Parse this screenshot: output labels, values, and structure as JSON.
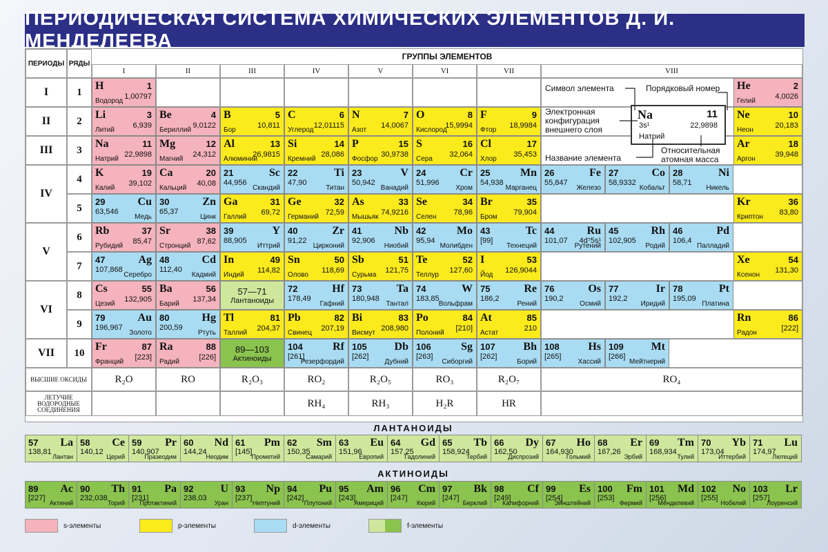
{
  "title": "ПЕРИОДИЧЕСКАЯ СИСТЕМА ХИМИЧЕСКИХ ЭЛЕМЕНТОВ Д. И. МЕНДЕЛЕЕВА",
  "headers": {
    "periods": "ПЕРИОДЫ",
    "rows": "РЯДЫ",
    "groups_title": "ГРУППЫ ЭЛЕМЕНТОВ"
  },
  "groups": [
    "I",
    "II",
    "III",
    "IV",
    "V",
    "VI",
    "VII",
    "VIII"
  ],
  "periods": [
    "I",
    "II",
    "III",
    "IV",
    "V",
    "VI",
    "VII"
  ],
  "rows": [
    "1",
    "2",
    "3",
    "4",
    "5",
    "6",
    "7",
    "8",
    "9",
    "10"
  ],
  "elements": [
    {
      "sym": "H",
      "num": "1",
      "mass": "1,00797",
      "name": "Водород",
      "cat": "s",
      "row": 1,
      "col": 1,
      "side": "l"
    },
    {
      "sym": "He",
      "num": "2",
      "mass": "4,0026",
      "name": "Гелий",
      "cat": "s",
      "row": 1,
      "col": 9,
      "side": "l"
    },
    {
      "sym": "Li",
      "num": "3",
      "mass": "6,939",
      "name": "Литий",
      "cat": "s",
      "row": 2,
      "col": 1,
      "side": "l"
    },
    {
      "sym": "Be",
      "num": "4",
      "mass": "9,0122",
      "name": "Бериллий",
      "cat": "s",
      "row": 2,
      "col": 2,
      "side": "l"
    },
    {
      "sym": "B",
      "num": "5",
      "mass": "10,811",
      "name": "Бор",
      "cat": "p",
      "row": 2,
      "col": 3,
      "side": "l"
    },
    {
      "sym": "C",
      "num": "6",
      "mass": "12,01115",
      "name": "Углерод",
      "cat": "p",
      "row": 2,
      "col": 4,
      "side": "l"
    },
    {
      "sym": "N",
      "num": "7",
      "mass": "14,0067",
      "name": "Азот",
      "cat": "p",
      "row": 2,
      "col": 5,
      "side": "l"
    },
    {
      "sym": "O",
      "num": "8",
      "mass": "15,9994",
      "name": "Кислород",
      "cat": "p",
      "row": 2,
      "col": 6,
      "side": "l"
    },
    {
      "sym": "F",
      "num": "9",
      "mass": "18,9984",
      "name": "Фтор",
      "cat": "p",
      "row": 2,
      "col": 7,
      "side": "l"
    },
    {
      "sym": "Ne",
      "num": "10",
      "mass": "20,183",
      "name": "Неон",
      "cat": "p",
      "row": 2,
      "col": 9,
      "side": "l"
    },
    {
      "sym": "Na",
      "num": "11",
      "mass": "22,9898",
      "name": "Натрий",
      "cat": "s",
      "row": 3,
      "col": 1,
      "side": "l"
    },
    {
      "sym": "Mg",
      "num": "12",
      "mass": "24,312",
      "name": "Магний",
      "cat": "s",
      "row": 3,
      "col": 2,
      "side": "l"
    },
    {
      "sym": "Al",
      "num": "13",
      "mass": "26,9815",
      "name": "Алюминий",
      "cat": "p",
      "row": 3,
      "col": 3,
      "side": "l"
    },
    {
      "sym": "Si",
      "num": "14",
      "mass": "28,086",
      "name": "Кремний",
      "cat": "p",
      "row": 3,
      "col": 4,
      "side": "l"
    },
    {
      "sym": "P",
      "num": "15",
      "mass": "30,9738",
      "name": "Фосфор",
      "cat": "p",
      "row": 3,
      "col": 5,
      "side": "l"
    },
    {
      "sym": "S",
      "num": "16",
      "mass": "32,064",
      "name": "Сера",
      "cat": "p",
      "row": 3,
      "col": 6,
      "side": "l"
    },
    {
      "sym": "Cl",
      "num": "17",
      "mass": "35,453",
      "name": "Хлор",
      "cat": "p",
      "row": 3,
      "col": 7,
      "side": "l"
    },
    {
      "sym": "Ar",
      "num": "18",
      "mass": "39,948",
      "name": "Аргон",
      "cat": "p",
      "row": 3,
      "col": 9,
      "side": "l"
    },
    {
      "sym": "K",
      "num": "19",
      "mass": "39,102",
      "name": "Калий",
      "cat": "s",
      "row": 4,
      "col": 1,
      "side": "l"
    },
    {
      "sym": "Ca",
      "num": "20",
      "mass": "40,08",
      "name": "Кальций",
      "cat": "s",
      "row": 4,
      "col": 2,
      "side": "l"
    },
    {
      "sym": "Sc",
      "num": "21",
      "mass": "44,956",
      "name": "Скандий",
      "cat": "d",
      "row": 4,
      "col": 3,
      "side": "r"
    },
    {
      "sym": "Ti",
      "num": "22",
      "mass": "47,90",
      "name": "Титан",
      "cat": "d",
      "row": 4,
      "col": 4,
      "side": "r"
    },
    {
      "sym": "V",
      "num": "23",
      "mass": "50,942",
      "name": "Ванадий",
      "cat": "d",
      "row": 4,
      "col": 5,
      "side": "r"
    },
    {
      "sym": "Cr",
      "num": "24",
      "mass": "51,996",
      "name": "Хром",
      "cat": "d",
      "row": 4,
      "col": 6,
      "side": "r"
    },
    {
      "sym": "Mn",
      "num": "25",
      "mass": "54,938",
      "name": "Марганец",
      "cat": "d",
      "row": 4,
      "col": 7,
      "side": "r"
    },
    {
      "sym": "Fe",
      "num": "26",
      "mass": "55,847",
      "name": "Железо",
      "cat": "d",
      "row": 4,
      "col": "8a",
      "side": "r"
    },
    {
      "sym": "Co",
      "num": "27",
      "mass": "58,9332",
      "name": "Кобальт",
      "cat": "d",
      "row": 4,
      "col": "8b",
      "side": "r"
    },
    {
      "sym": "Ni",
      "num": "28",
      "mass": "58,71",
      "name": "Никель",
      "cat": "d",
      "row": 4,
      "col": "8c",
      "side": "r"
    },
    {
      "sym": "Cu",
      "num": "29",
      "mass": "63,546",
      "name": "Медь",
      "cat": "d",
      "row": 5,
      "col": 1,
      "side": "r"
    },
    {
      "sym": "Zn",
      "num": "30",
      "mass": "65,37",
      "name": "Цинк",
      "cat": "d",
      "row": 5,
      "col": 2,
      "side": "r"
    },
    {
      "sym": "Ga",
      "num": "31",
      "mass": "69,72",
      "name": "Галлий",
      "cat": "p",
      "row": 5,
      "col": 3,
      "side": "l"
    },
    {
      "sym": "Ge",
      "num": "32",
      "mass": "72,59",
      "name": "Германий",
      "cat": "p",
      "row": 5,
      "col": 4,
      "side": "l"
    },
    {
      "sym": "As",
      "num": "33",
      "mass": "74,9216",
      "name": "Мышьяк",
      "cat": "p",
      "row": 5,
      "col": 5,
      "side": "l"
    },
    {
      "sym": "Se",
      "num": "34",
      "mass": "78,96",
      "name": "Селен",
      "cat": "p",
      "row": 5,
      "col": 6,
      "side": "l"
    },
    {
      "sym": "Br",
      "num": "35",
      "mass": "79,904",
      "name": "Бром",
      "cat": "p",
      "row": 5,
      "col": 7,
      "side": "l"
    },
    {
      "sym": "Kr",
      "num": "36",
      "mass": "83,80",
      "name": "Криптон",
      "cat": "p",
      "row": 5,
      "col": 9,
      "side": "l"
    },
    {
      "sym": "Rb",
      "num": "37",
      "mass": "85,47",
      "name": "Рубидий",
      "cat": "s",
      "row": 6,
      "col": 1,
      "side": "l"
    },
    {
      "sym": "Sr",
      "num": "38",
      "mass": "87,62",
      "name": "Стронций",
      "cat": "s",
      "row": 6,
      "col": 2,
      "side": "l"
    },
    {
      "sym": "Y",
      "num": "39",
      "mass": "88,905",
      "name": "Иттрий",
      "cat": "d",
      "row": 6,
      "col": 3,
      "side": "r"
    },
    {
      "sym": "Zr",
      "num": "40",
      "mass": "91,22",
      "name": "Цирконий",
      "cat": "d",
      "row": 6,
      "col": 4,
      "side": "r"
    },
    {
      "sym": "Nb",
      "num": "41",
      "mass": "92,906",
      "name": "Ниобий",
      "cat": "d",
      "row": 6,
      "col": 5,
      "side": "r"
    },
    {
      "sym": "Mo",
      "num": "42",
      "mass": "95,94",
      "name": "Молибден",
      "cat": "d",
      "row": 6,
      "col": 6,
      "side": "r"
    },
    {
      "sym": "Tc",
      "num": "43",
      "mass": "[99]",
      "name": "Технеций",
      "cat": "d",
      "row": 6,
      "col": 7,
      "side": "r"
    },
    {
      "sym": "Ru",
      "num": "44",
      "mass": "101,07",
      "name": "Рутений",
      "cat": "d",
      "row": 6,
      "col": "8a",
      "side": "r",
      "extra": "4d⁷5s¹"
    },
    {
      "sym": "Rh",
      "num": "45",
      "mass": "102,905",
      "name": "Родий",
      "cat": "d",
      "row": 6,
      "col": "8b",
      "side": "r"
    },
    {
      "sym": "Pd",
      "num": "46",
      "mass": "106,4",
      "name": "Палладий",
      "cat": "d",
      "row": 6,
      "col": "8c",
      "side": "r"
    },
    {
      "sym": "Ag",
      "num": "47",
      "mass": "107,868",
      "name": "Серебро",
      "cat": "d",
      "row": 7,
      "col": 1,
      "side": "r"
    },
    {
      "sym": "Cd",
      "num": "48",
      "mass": "112,40",
      "name": "Кадмий",
      "cat": "d",
      "row": 7,
      "col": 2,
      "side": "r"
    },
    {
      "sym": "In",
      "num": "49",
      "mass": "114,82",
      "name": "Индий",
      "cat": "p",
      "row": 7,
      "col": 3,
      "side": "l"
    },
    {
      "sym": "Sn",
      "num": "50",
      "mass": "118,69",
      "name": "Олово",
      "cat": "p",
      "row": 7,
      "col": 4,
      "side": "l"
    },
    {
      "sym": "Sb",
      "num": "51",
      "mass": "121,75",
      "name": "Сурьма",
      "cat": "p",
      "row": 7,
      "col": 5,
      "side": "l"
    },
    {
      "sym": "Te",
      "num": "52",
      "mass": "127,60",
      "name": "Теллур",
      "cat": "p",
      "row": 7,
      "col": 6,
      "side": "l"
    },
    {
      "sym": "I",
      "num": "53",
      "mass": "126,9044",
      "name": "Йод",
      "cat": "p",
      "row": 7,
      "col": 7,
      "side": "l"
    },
    {
      "sym": "Xe",
      "num": "54",
      "mass": "131,30",
      "name": "Ксенон",
      "cat": "p",
      "row": 7,
      "col": 9,
      "side": "l"
    },
    {
      "sym": "Cs",
      "num": "55",
      "mass": "132,905",
      "name": "Цезий",
      "cat": "s",
      "row": 8,
      "col": 1,
      "side": "l"
    },
    {
      "sym": "Ba",
      "num": "56",
      "mass": "137,34",
      "name": "Барий",
      "cat": "s",
      "row": 8,
      "col": 2,
      "side": "l"
    },
    {
      "sym": "Hf",
      "num": "72",
      "mass": "178,49",
      "name": "Гафний",
      "cat": "d",
      "row": 8,
      "col": 4,
      "side": "r"
    },
    {
      "sym": "Ta",
      "num": "73",
      "mass": "180,948",
      "name": "Тантал",
      "cat": "d",
      "row": 8,
      "col": 5,
      "side": "r"
    },
    {
      "sym": "W",
      "num": "74",
      "mass": "183,85",
      "name": "Вольфрам",
      "cat": "d",
      "row": 8,
      "col": 6,
      "side": "r"
    },
    {
      "sym": "Re",
      "num": "75",
      "mass": "186,2",
      "name": "Рений",
      "cat": "d",
      "row": 8,
      "col": 7,
      "side": "r"
    },
    {
      "sym": "Os",
      "num": "76",
      "mass": "190,2",
      "name": "Осмий",
      "cat": "d",
      "row": 8,
      "col": "8a",
      "side": "r"
    },
    {
      "sym": "Ir",
      "num": "77",
      "mass": "192,2",
      "name": "Иридий",
      "cat": "d",
      "row": 8,
      "col": "8b",
      "side": "r"
    },
    {
      "sym": "Pt",
      "num": "78",
      "mass": "195,09",
      "name": "Платина",
      "cat": "d",
      "row": 8,
      "col": "8c",
      "side": "r"
    },
    {
      "sym": "Au",
      "num": "79",
      "mass": "196,967",
      "name": "Золото",
      "cat": "d",
      "row": 9,
      "col": 1,
      "side": "r"
    },
    {
      "sym": "Hg",
      "num": "80",
      "mass": "200,59",
      "name": "Ртуть",
      "cat": "d",
      "row": 9,
      "col": 2,
      "side": "r"
    },
    {
      "sym": "Tl",
      "num": "81",
      "mass": "204,37",
      "name": "Таллий",
      "cat": "p",
      "row": 9,
      "col": 3,
      "side": "l"
    },
    {
      "sym": "Pb",
      "num": "82",
      "mass": "207,19",
      "name": "Свинец",
      "cat": "p",
      "row": 9,
      "col": 4,
      "side": "l"
    },
    {
      "sym": "Bi",
      "num": "83",
      "mass": "208,980",
      "name": "Висмут",
      "cat": "p",
      "row": 9,
      "col": 5,
      "side": "l"
    },
    {
      "sym": "Po",
      "num": "84",
      "mass": "[210]",
      "name": "Полоний",
      "cat": "p",
      "row": 9,
      "col": 6,
      "side": "l"
    },
    {
      "sym": "At",
      "num": "85",
      "mass": "210",
      "name": "Астат",
      "cat": "p",
      "row": 9,
      "col": 7,
      "side": "l"
    },
    {
      "sym": "Rn",
      "num": "86",
      "mass": "[222]",
      "name": "Радон",
      "cat": "p",
      "row": 9,
      "col": 9,
      "side": "l"
    },
    {
      "sym": "Fr",
      "num": "87",
      "mass": "[223]",
      "name": "Франций",
      "cat": "s",
      "row": 10,
      "col": 1,
      "side": "l"
    },
    {
      "sym": "Ra",
      "num": "88",
      "mass": "[226]",
      "name": "Радий",
      "cat": "s",
      "row": 10,
      "col": 2,
      "side": "l"
    },
    {
      "sym": "Rf",
      "num": "104",
      "mass": "[261]",
      "name": "Резерфордий",
      "cat": "d",
      "row": 10,
      "col": 4,
      "side": "r"
    },
    {
      "sym": "Db",
      "num": "105",
      "mass": "[262]",
      "name": "Дубний",
      "cat": "d",
      "row": 10,
      "col": 5,
      "side": "r"
    },
    {
      "sym": "Sg",
      "num": "106",
      "mass": "[263]",
      "name": "Сиборгий",
      "cat": "d",
      "row": 10,
      "col": 6,
      "side": "r"
    },
    {
      "sym": "Bh",
      "num": "107",
      "mass": "[262]",
      "name": "Борий",
      "cat": "d",
      "row": 10,
      "col": 7,
      "side": "r"
    },
    {
      "sym": "Hs",
      "num": "108",
      "mass": "[265]",
      "name": "Хассий",
      "cat": "d",
      "row": 10,
      "col": "8a",
      "side": "r"
    },
    {
      "sym": "Mt",
      "num": "109",
      "mass": "[266]",
      "name": "Мейтнерий",
      "cat": "d",
      "row": 10,
      "col": "8b",
      "side": "r"
    }
  ],
  "placeholders": {
    "lanthanoids": {
      "range": "57—71",
      "label": "Лантаноиды"
    },
    "actinoids": {
      "range": "89—103",
      "label": "Актиноиды"
    }
  },
  "key": {
    "symbol": "Символ элемента",
    "atomic_number": "Порядковый номер",
    "configuration": "Электронная конфигурация внешнего слоя",
    "element_name": "Название элемента",
    "relative_mass": "Относительная атомная масса",
    "sample_sym": "Na",
    "sample_num": "11",
    "sample_config": "3s¹",
    "sample_mass": "22,9898",
    "sample_name": "Натрий"
  },
  "oxides_label": "ВЫСШИЕ ОКСИДЫ",
  "oxides": [
    "R₂O",
    "RO",
    "R₂O₃",
    "RO₂",
    "R₂O₅",
    "RO₃",
    "R₂O₇",
    "RO₄"
  ],
  "hydrides_label": "ЛЕТУЧИЕ ВОДОРОДНЫЕ СОЕДИНЕНИЯ",
  "hydrides": [
    "",
    "",
    "",
    "RH₄",
    "RH₃",
    "H₂R",
    "HR",
    ""
  ],
  "lanthanoids_title": "ЛАНТАНОИДЫ",
  "lanthanoids": [
    {
      "sym": "La",
      "num": "57",
      "mass": "138,81",
      "name": "Лантан"
    },
    {
      "sym": "Ce",
      "num": "58",
      "mass": "140,12",
      "name": "Церий"
    },
    {
      "sym": "Pr",
      "num": "59",
      "mass": "140,907",
      "name": "Празеодим"
    },
    {
      "sym": "Nd",
      "num": "60",
      "mass": "144,24",
      "name": "Неодим"
    },
    {
      "sym": "Pm",
      "num": "61",
      "mass": "[145]",
      "name": "Прометий"
    },
    {
      "sym": "Sm",
      "num": "62",
      "mass": "150,35",
      "name": "Самарий"
    },
    {
      "sym": "Eu",
      "num": "63",
      "mass": "151,96",
      "name": "Европий"
    },
    {
      "sym": "Gd",
      "num": "64",
      "mass": "157,25",
      "name": "Гадолиний"
    },
    {
      "sym": "Tb",
      "num": "65",
      "mass": "158,924",
      "name": "Тербий"
    },
    {
      "sym": "Dy",
      "num": "66",
      "mass": "162,50",
      "name": "Диспрозий"
    },
    {
      "sym": "Ho",
      "num": "67",
      "mass": "164,930",
      "name": "Гольмий"
    },
    {
      "sym": "Er",
      "num": "68",
      "mass": "167,26",
      "name": "Эрбий"
    },
    {
      "sym": "Tm",
      "num": "69",
      "mass": "168,934",
      "name": "Тулий"
    },
    {
      "sym": "Yb",
      "num": "70",
      "mass": "173,04",
      "name": "Иттербий"
    },
    {
      "sym": "Lu",
      "num": "71",
      "mass": "174,97",
      "name": "Лютеций"
    }
  ],
  "actinoids_title": "АКТИНОИДЫ",
  "actinoids": [
    {
      "sym": "Ac",
      "num": "89",
      "mass": "[227]",
      "name": "Актиний"
    },
    {
      "sym": "Th",
      "num": "90",
      "mass": "232,038",
      "name": "Торий"
    },
    {
      "sym": "Pa",
      "num": "91",
      "mass": "[231]",
      "name": "Протактиний"
    },
    {
      "sym": "U",
      "num": "92",
      "mass": "238,03",
      "name": "Уран"
    },
    {
      "sym": "Np",
      "num": "93",
      "mass": "[237]",
      "name": "Нептуний"
    },
    {
      "sym": "Pu",
      "num": "94",
      "mass": "[242]",
      "name": "Плутоний"
    },
    {
      "sym": "Am",
      "num": "95",
      "mass": "[243]",
      "name": "Америций"
    },
    {
      "sym": "Cm",
      "num": "96",
      "mass": "[247]",
      "name": "Кюрий"
    },
    {
      "sym": "Bk",
      "num": "97",
      "mass": "[247]",
      "name": "Берклий"
    },
    {
      "sym": "Cf",
      "num": "98",
      "mass": "[249]",
      "name": "Калифорний"
    },
    {
      "sym": "Es",
      "num": "99",
      "mass": "[254]",
      "name": "Эйнштейний"
    },
    {
      "sym": "Fm",
      "num": "100",
      "mass": "[253]",
      "name": "Фермий"
    },
    {
      "sym": "Md",
      "num": "101",
      "mass": "[256]",
      "name": "Менделевий"
    },
    {
      "sym": "No",
      "num": "102",
      "mass": "[255]",
      "name": "Нобелий"
    },
    {
      "sym": "Lr",
      "num": "103",
      "mass": "[257]",
      "name": "Лоуренсий"
    }
  ],
  "legend": [
    {
      "label": "s-элементы",
      "color": "#f5b3bd"
    },
    {
      "label": "p-элементы",
      "color": "#fbea1c"
    },
    {
      "label": "d-элементы",
      "color": "#a9dcf3"
    },
    {
      "label": "f-элементы",
      "color": "#cfe79d",
      "color2": "#8bc34f"
    }
  ]
}
